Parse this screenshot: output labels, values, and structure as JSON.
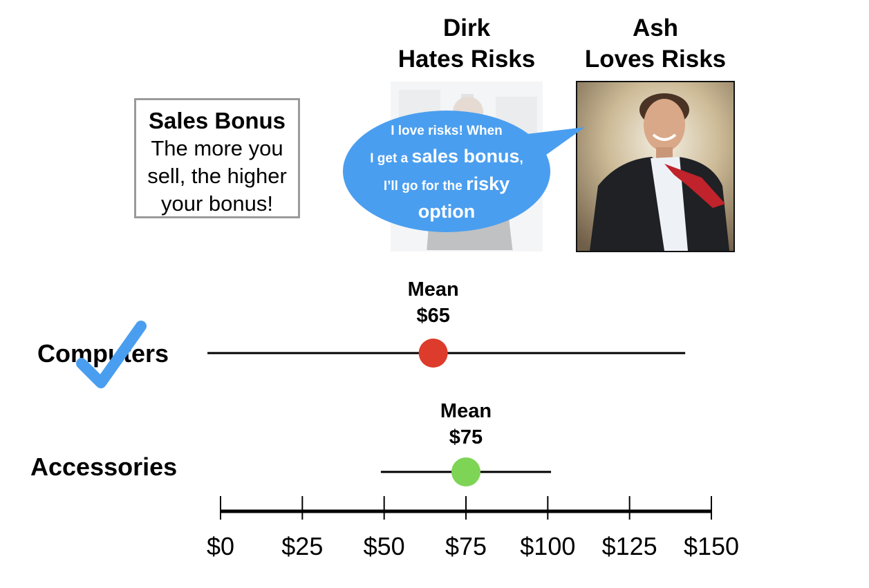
{
  "people": {
    "dirk": {
      "name": "Dirk",
      "trait": "Hates Risks"
    },
    "ash": {
      "name": "Ash",
      "trait": "Loves Risks"
    }
  },
  "bonus_box": {
    "title": "Sales Bonus",
    "lines": [
      "The more you",
      "sell, the higher",
      "your bonus!"
    ]
  },
  "speech_bubble": {
    "line1": "I love risks! When",
    "line2_a": "I get a ",
    "line2_b": "sales bonus",
    "line2_c": ",",
    "line3_a": "I’ll go for the ",
    "line3_b": "risky",
    "line4": "option",
    "color": "#4a9eef"
  },
  "check_color": "#4a9eef",
  "chart_data": {
    "type": "range",
    "axis": {
      "min": 0,
      "max": 150,
      "ticks": [
        0,
        25,
        50,
        75,
        100,
        125,
        150
      ],
      "tick_labels": [
        "$0",
        "$25",
        "$50",
        "$75",
        "$100",
        "$125",
        "$150"
      ]
    },
    "series": [
      {
        "name": "Computers",
        "mean": 65,
        "low": -4,
        "high": 142,
        "mean_label": [
          "Mean",
          "$65"
        ],
        "color": "#dd3b2b",
        "checked": true
      },
      {
        "name": "Accessories",
        "mean": 75,
        "low": 49,
        "high": 101,
        "mean_label": [
          "Mean",
          "$75"
        ],
        "color": "#7ed455",
        "checked": false
      }
    ]
  }
}
